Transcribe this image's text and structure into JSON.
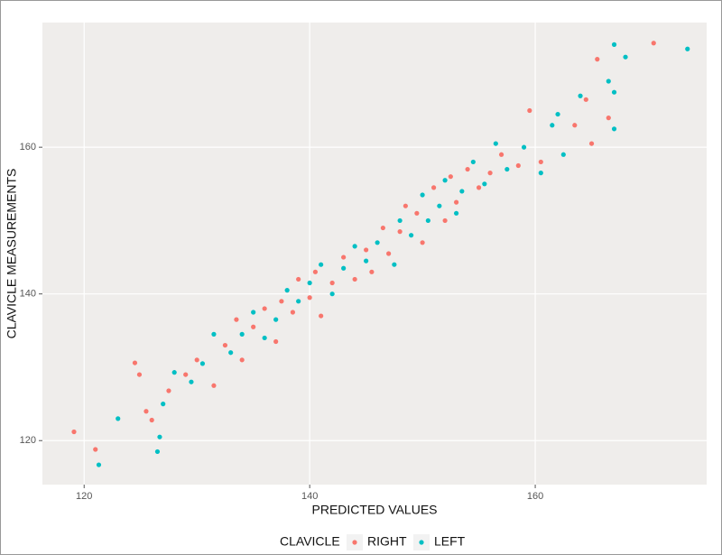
{
  "chart_data": {
    "type": "scatter",
    "xlabel": "PREDICTED VALUES",
    "ylabel": "CLAVICLE MEASUREMENTS",
    "legend_title": "CLAVICLE",
    "legend_position": "bottom",
    "grid": true,
    "xlim": [
      116.3,
      175.2
    ],
    "ylim": [
      114.0,
      177.0
    ],
    "xticks": [
      120,
      140,
      160
    ],
    "yticks": [
      120,
      140,
      160
    ],
    "series": [
      {
        "name": "RIGHT",
        "color": "#F8766D",
        "x": [
          119.1,
          121.0,
          124.5,
          124.9,
          125.5,
          126.0,
          127.5,
          129.0,
          130.0,
          131.5,
          132.5,
          133.5,
          134.0,
          135.0,
          136.0,
          137.0,
          137.5,
          138.5,
          139.0,
          140.0,
          140.5,
          141.0,
          142.0,
          143.0,
          144.0,
          145.0,
          145.5,
          146.5,
          147.0,
          148.0,
          148.5,
          149.5,
          150.0,
          151.0,
          152.0,
          152.5,
          153.0,
          154.0,
          155.0,
          156.0,
          157.0,
          158.5,
          159.5,
          160.5,
          163.5,
          164.5,
          165.0,
          165.5,
          166.5,
          170.5
        ],
        "values": [
          121.2,
          118.8,
          130.6,
          129.0,
          124.0,
          122.8,
          126.8,
          129.0,
          131.0,
          127.5,
          133.0,
          136.5,
          131.0,
          135.5,
          138.0,
          133.5,
          139.0,
          137.5,
          142.0,
          139.5,
          143.0,
          137.0,
          141.5,
          145.0,
          142.0,
          146.0,
          143.0,
          149.0,
          145.5,
          148.5,
          152.0,
          151.0,
          147.0,
          154.5,
          150.0,
          156.0,
          152.5,
          157.0,
          154.5,
          156.5,
          159.0,
          157.5,
          165.0,
          158.0,
          163.0,
          166.5,
          160.5,
          172.0,
          164.0,
          174.2
        ]
      },
      {
        "name": "LEFT",
        "color": "#00BFC4",
        "x": [
          121.3,
          123.0,
          126.5,
          126.7,
          127.0,
          128.0,
          129.5,
          130.5,
          131.5,
          133.0,
          134.0,
          135.0,
          136.0,
          137.0,
          138.0,
          139.0,
          140.0,
          141.0,
          142.0,
          143.0,
          144.0,
          145.0,
          146.0,
          147.5,
          148.0,
          149.0,
          150.0,
          150.5,
          151.5,
          152.0,
          153.0,
          153.5,
          154.5,
          155.5,
          156.5,
          157.5,
          159.0,
          160.5,
          161.5,
          162.0,
          162.5,
          164.0,
          166.5,
          167.0,
          167.0,
          167.0,
          168.0,
          173.5
        ],
        "values": [
          116.7,
          123.0,
          118.5,
          120.5,
          125.0,
          129.3,
          128.0,
          130.5,
          134.5,
          132.0,
          134.5,
          137.5,
          134.0,
          136.5,
          140.5,
          139.0,
          141.5,
          144.0,
          140.0,
          143.5,
          146.5,
          144.5,
          147.0,
          144.0,
          150.0,
          148.0,
          153.5,
          150.0,
          152.0,
          155.5,
          151.0,
          154.0,
          158.0,
          155.0,
          160.5,
          157.0,
          160.0,
          156.5,
          163.0,
          164.5,
          159.0,
          167.0,
          169.0,
          162.5,
          167.5,
          174.0,
          172.3,
          173.4
        ]
      }
    ]
  }
}
